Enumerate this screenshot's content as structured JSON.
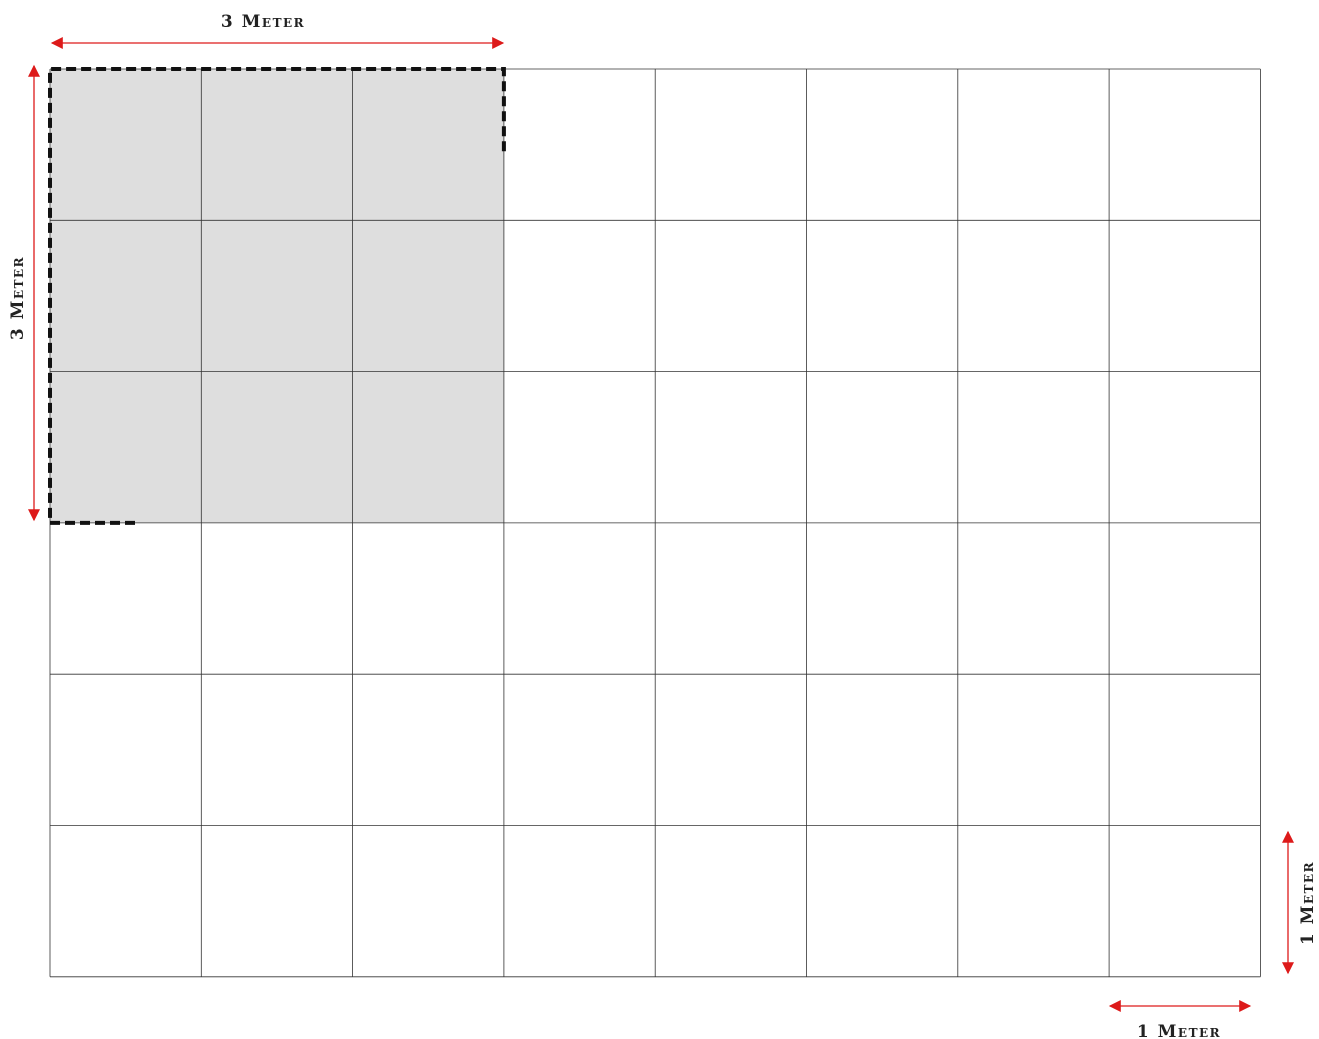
{
  "grid": {
    "columns": 8,
    "rows": 6,
    "cell_size_meters": 1,
    "line_color": "#333333",
    "background": "#ffffff"
  },
  "highlight": {
    "columns": 3,
    "rows": 3,
    "fill": "#dedede",
    "border_color": "#111111",
    "border_style": "dashed"
  },
  "arrow_color": "#dd1a1a",
  "labels": {
    "top_width": "3 Meter",
    "left_height": "3 Meter",
    "right_cell_height": "1 Meter",
    "bottom_cell_width": "1 Meter"
  }
}
